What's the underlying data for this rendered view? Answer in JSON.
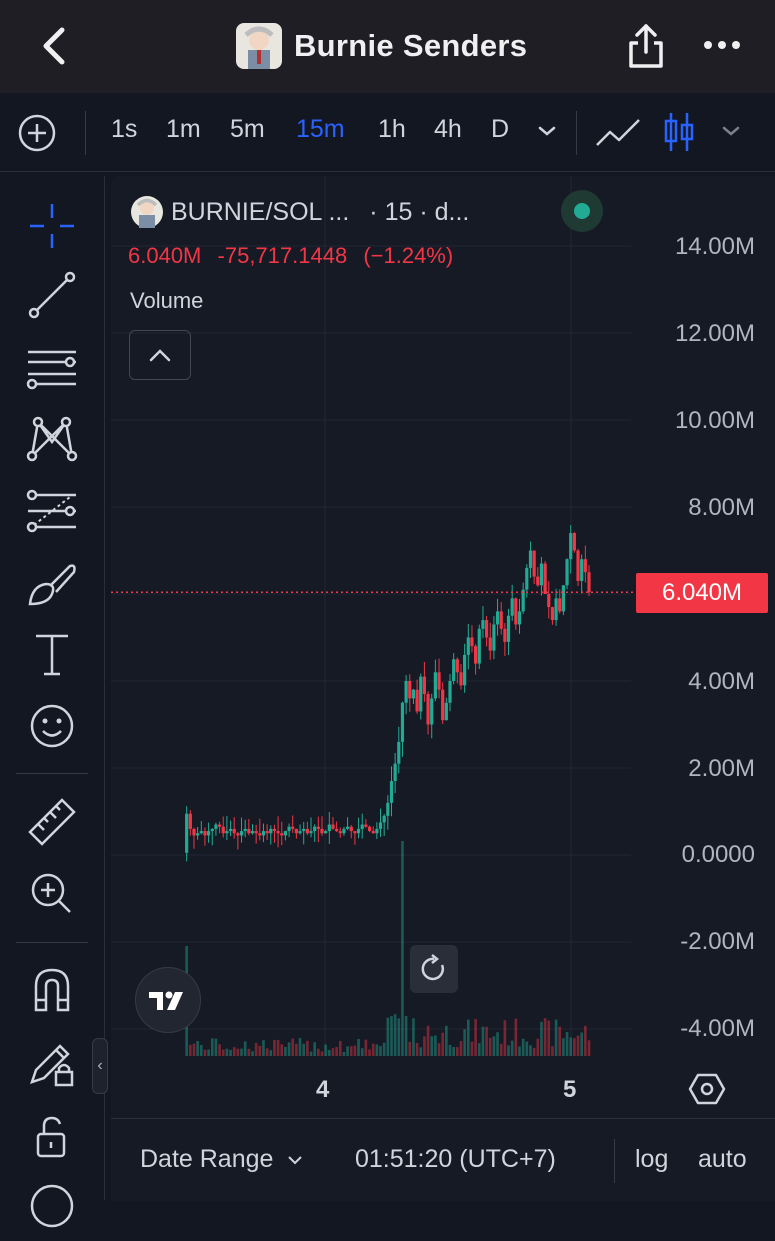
{
  "header": {
    "title": "Burnie Senders",
    "icons": [
      "back-arrow-icon",
      "share-icon",
      "more-dots-icon"
    ]
  },
  "toolbar": {
    "timeframes": [
      "1s",
      "1m",
      "5m",
      "15m",
      "1h",
      "4h",
      "D"
    ],
    "active_timeframe": "15m"
  },
  "legend": {
    "symbol": "BURNIE/SOL ...",
    "interval_suffix": "· 15 · d...",
    "price": "6.040M",
    "change": "-75,717.1448",
    "change_pct": "(−1.24%)",
    "indicator": "Volume"
  },
  "y_axis": {
    "labels": [
      "14.00M",
      "12.00M",
      "10.00M",
      "8.00M",
      "6.00M",
      "4.00M",
      "2.00M",
      "0.0000",
      "-2.00M",
      "-4.00M"
    ],
    "current_price_label": "6.040M"
  },
  "x_axis": {
    "labels": [
      "4",
      "5"
    ]
  },
  "bottom_bar": {
    "date_range": "Date Range",
    "time": "01:51:20 (UTC+7)",
    "log": "log",
    "auto": "auto"
  },
  "colors": {
    "up": "#22ab94",
    "down": "#f23645",
    "accent": "#2962ff",
    "background": "#161a25"
  },
  "chart_data": {
    "type": "candlestick",
    "ylim": [
      -4.5,
      14.5
    ],
    "y_unit": "M",
    "current_price": 6.04,
    "price_path": [
      0.05,
      0.95,
      0.6,
      0.45,
      0.5,
      0.55,
      0.45,
      0.55,
      0.6,
      0.7,
      0.65,
      0.5,
      0.55,
      0.6,
      0.5,
      0.45,
      0.55,
      0.6,
      0.5,
      0.55,
      0.5,
      0.45,
      0.55,
      0.5,
      0.6,
      0.55,
      0.5,
      0.45,
      0.55,
      0.65,
      0.6,
      0.5,
      0.55,
      0.6,
      0.5,
      0.55,
      0.65,
      0.6,
      0.5,
      0.55,
      0.7,
      0.6,
      0.55,
      0.5,
      0.6,
      0.65,
      0.55,
      0.5,
      0.6,
      0.7,
      0.65,
      0.55,
      0.5,
      0.6,
      0.75,
      0.9,
      1.2,
      1.7,
      2.1,
      2.6,
      3.5,
      4.0,
      3.6,
      3.8,
      3.3,
      4.1,
      3.7,
      3.0,
      3.6,
      4.2,
      3.8,
      3.1,
      3.5,
      4.0,
      4.5,
      4.2,
      3.9,
      4.6,
      5.0,
      4.8,
      4.4,
      5.2,
      5.4,
      5.0,
      4.7,
      5.3,
      5.6,
      5.2,
      4.9,
      5.5,
      5.9,
      5.3,
      5.6,
      6.1,
      6.6,
      7.0,
      6.4,
      6.2,
      6.7,
      6.0,
      5.7,
      5.4,
      5.9,
      5.6,
      6.2,
      6.8,
      7.4,
      7.0,
      6.3,
      6.8,
      6.5,
      6.04
    ],
    "volume_note": "volume bars drawn at the bottom"
  }
}
